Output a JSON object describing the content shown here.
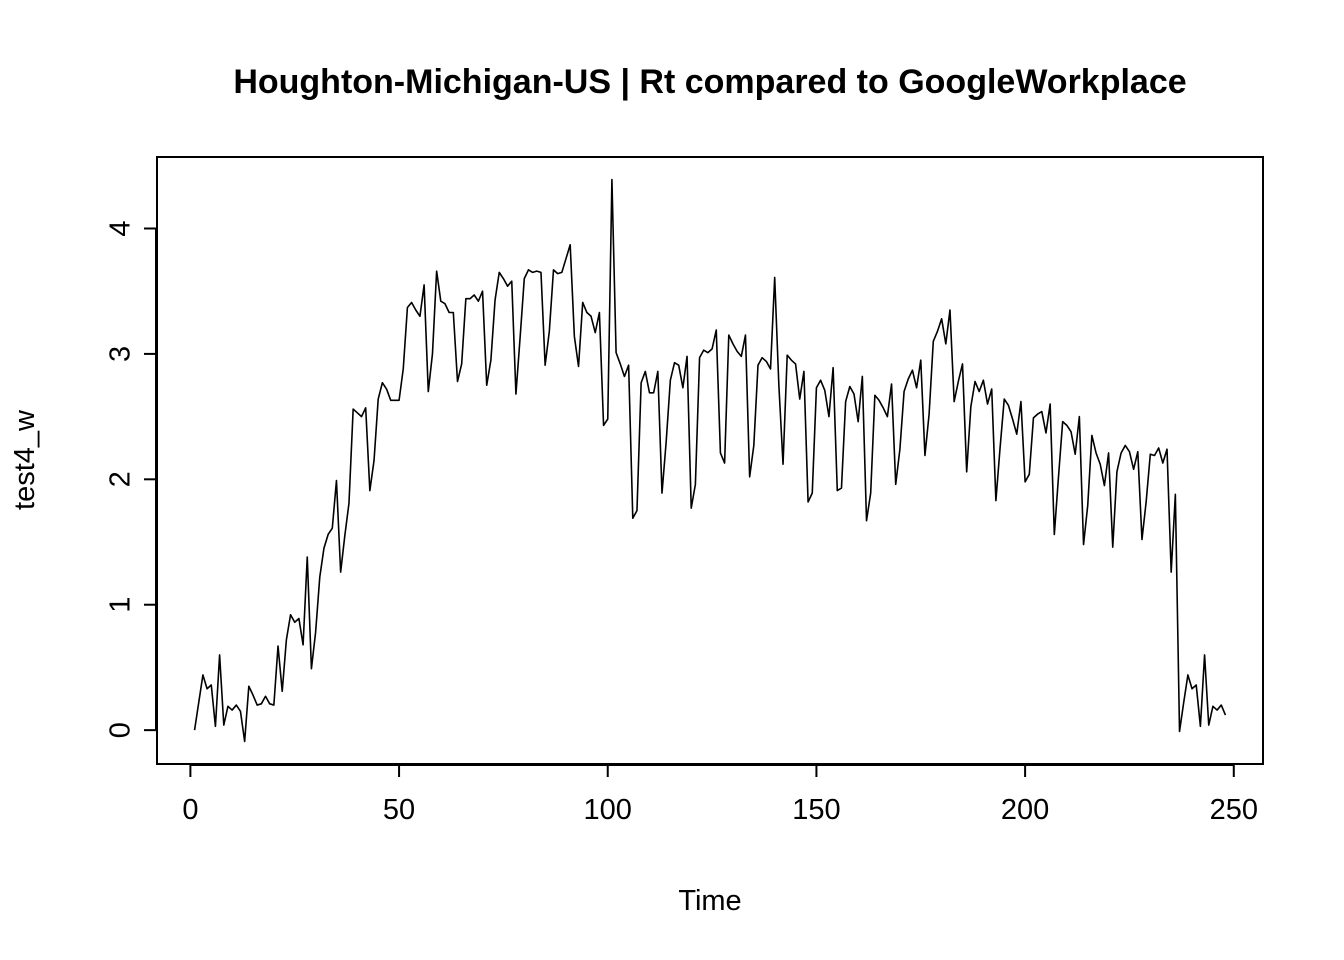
{
  "chart_data": {
    "type": "line",
    "title": "Houghton-Michigan-US | Rt compared to GoogleWorkplace",
    "xlabel": "Time",
    "ylabel": "test4_w",
    "xlim": [
      -8,
      257
    ],
    "ylim": [
      -0.27,
      4.57
    ],
    "x_ticks": [
      0,
      50,
      100,
      150,
      200,
      250
    ],
    "x_tick_labels": [
      "0",
      "50",
      "100",
      "150",
      "200",
      "250"
    ],
    "y_ticks": [
      0,
      1,
      2,
      3,
      4
    ],
    "y_tick_labels": [
      "0",
      "1",
      "2",
      "3",
      "4"
    ],
    "grid": false,
    "legend": "none",
    "line_color": "#000000",
    "series": [
      {
        "x_start": 1,
        "values": [
          0.0,
          0.22,
          0.44,
          0.33,
          0.36,
          0.03,
          0.6,
          0.04,
          0.19,
          0.16,
          0.2,
          0.15,
          -0.09,
          0.35,
          0.28,
          0.2,
          0.21,
          0.27,
          0.21,
          0.2,
          0.67,
          0.31,
          0.72,
          0.92,
          0.86,
          0.89,
          0.68,
          1.38,
          0.49,
          0.78,
          1.22,
          1.45,
          1.56,
          1.61,
          1.99,
          1.26,
          1.55,
          1.81,
          2.56,
          2.53,
          2.5,
          2.57,
          1.91,
          2.15,
          2.64,
          2.77,
          2.72,
          2.63,
          2.63,
          2.63,
          2.88,
          3.37,
          3.41,
          3.35,
          3.3,
          3.55,
          2.7,
          3.0,
          3.66,
          3.42,
          3.4,
          3.33,
          3.33,
          2.78,
          2.92,
          3.44,
          3.44,
          3.47,
          3.42,
          3.5,
          2.75,
          2.95,
          3.43,
          3.65,
          3.6,
          3.54,
          3.58,
          2.68,
          3.13,
          3.6,
          3.67,
          3.65,
          3.66,
          3.65,
          2.91,
          3.18,
          3.67,
          3.64,
          3.65,
          3.76,
          3.87,
          3.14,
          2.9,
          3.41,
          3.33,
          3.3,
          3.17,
          3.33,
          2.43,
          2.48,
          4.39,
          3.01,
          2.92,
          2.82,
          2.91,
          1.69,
          1.75,
          2.77,
          2.86,
          2.69,
          2.69,
          2.86,
          1.89,
          2.3,
          2.79,
          2.93,
          2.91,
          2.73,
          2.98,
          1.77,
          1.96,
          2.97,
          3.03,
          3.01,
          3.04,
          3.19,
          2.21,
          2.13,
          3.15,
          3.08,
          3.02,
          2.98,
          3.15,
          2.02,
          2.27,
          2.91,
          2.97,
          2.94,
          2.88,
          3.61,
          2.75,
          2.12,
          2.99,
          2.95,
          2.92,
          2.64,
          2.86,
          1.82,
          1.89,
          2.73,
          2.79,
          2.71,
          2.5,
          2.89,
          1.91,
          1.93,
          2.62,
          2.74,
          2.68,
          2.46,
          2.82,
          1.67,
          1.89,
          2.67,
          2.63,
          2.57,
          2.5,
          2.76,
          1.96,
          2.24,
          2.7,
          2.8,
          2.87,
          2.73,
          2.95,
          2.19,
          2.52,
          3.1,
          3.18,
          3.28,
          3.08,
          3.35,
          2.62,
          2.78,
          2.92,
          2.06,
          2.58,
          2.78,
          2.7,
          2.79,
          2.6,
          2.72,
          1.83,
          2.25,
          2.64,
          2.59,
          2.48,
          2.36,
          2.62,
          1.98,
          2.04,
          2.49,
          2.52,
          2.54,
          2.37,
          2.6,
          1.56,
          2.02,
          2.46,
          2.43,
          2.38,
          2.2,
          2.5,
          1.48,
          1.79,
          2.35,
          2.21,
          2.12,
          1.95,
          2.21,
          1.46,
          2.06,
          2.21,
          2.27,
          2.22,
          2.08,
          2.22,
          1.52,
          1.82,
          2.2,
          2.19,
          2.25,
          2.13,
          2.24,
          1.26,
          1.88,
          -0.01,
          0.22,
          0.44,
          0.33,
          0.36,
          0.03,
          0.6,
          0.04,
          0.19,
          0.16,
          0.2,
          0.12
        ]
      }
    ]
  }
}
